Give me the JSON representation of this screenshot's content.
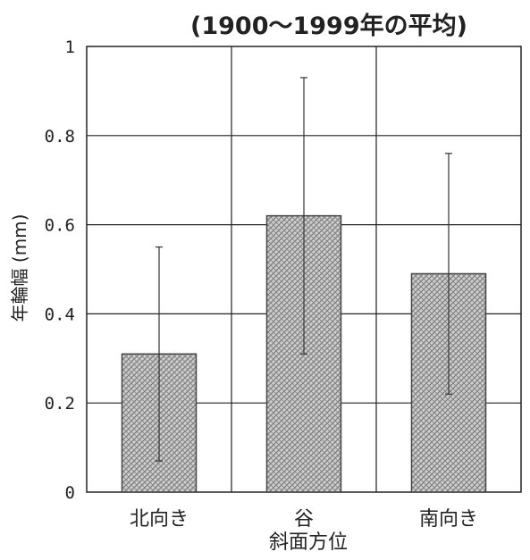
{
  "chart_data": {
    "type": "bar",
    "title": "(1900〜1999年の平均)",
    "xlabel": "斜面方位",
    "ylabel": "年輪幅 (mm)",
    "categories": [
      "北向き",
      "谷",
      "南向き"
    ],
    "values": [
      0.31,
      0.62,
      0.49
    ],
    "error_low": [
      0.07,
      0.31,
      0.22
    ],
    "error_high": [
      0.55,
      0.93,
      0.76
    ],
    "ylim": [
      0,
      1
    ],
    "yticks": [
      0,
      0.2,
      0.4,
      0.6,
      0.8,
      1
    ],
    "ytick_labels": [
      "0",
      "0.2",
      "0.4",
      "0.6",
      "0.8",
      "1"
    ],
    "grid": true,
    "bar_pattern": "crosshatch-gray"
  }
}
